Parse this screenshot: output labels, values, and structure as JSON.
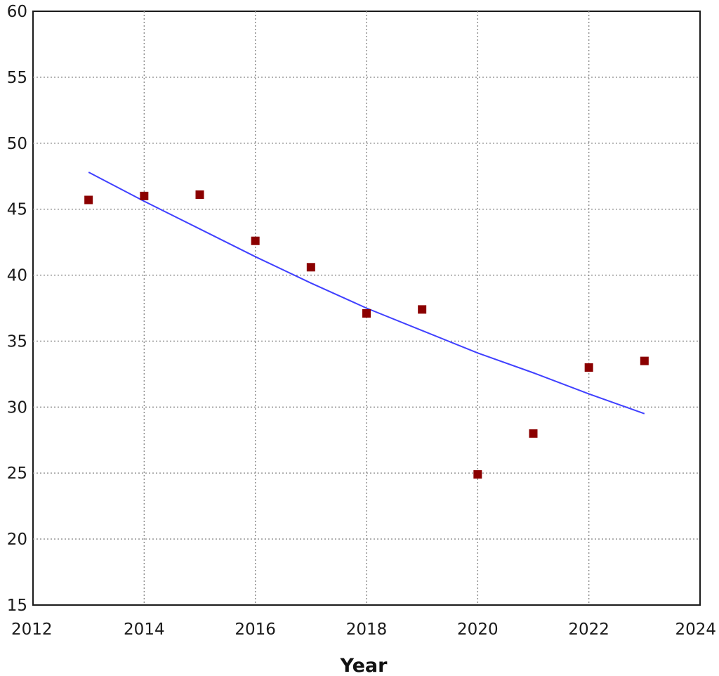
{
  "chart_data": {
    "type": "scatter",
    "title": "",
    "xlabel": "Year",
    "ylabel": "",
    "xlim": [
      2012,
      2024
    ],
    "ylim": [
      15,
      60
    ],
    "x_ticks": [
      2012,
      2014,
      2016,
      2018,
      2020,
      2022,
      2024
    ],
    "y_ticks": [
      15,
      20,
      25,
      30,
      35,
      40,
      45,
      50,
      55,
      60
    ],
    "grid": true,
    "legend": "none",
    "series": [
      {
        "type": "scatter",
        "marker": "square",
        "color": "#8b0000",
        "x": [
          2013,
          2014,
          2015,
          2016,
          2017,
          2018,
          2019,
          2020,
          2021,
          2022,
          2023
        ],
        "y": [
          45.7,
          46.0,
          46.1,
          42.6,
          40.6,
          37.1,
          37.4,
          24.9,
          28.0,
          33.0,
          33.5
        ]
      },
      {
        "type": "line",
        "color": "#4040ff",
        "x": [
          2013,
          2014,
          2015,
          2016,
          2017,
          2018,
          2019,
          2020,
          2021,
          2022,
          2023
        ],
        "y": [
          47.8,
          45.6,
          43.5,
          41.4,
          39.4,
          37.5,
          35.8,
          34.1,
          32.6,
          31.0,
          29.5
        ]
      }
    ]
  }
}
